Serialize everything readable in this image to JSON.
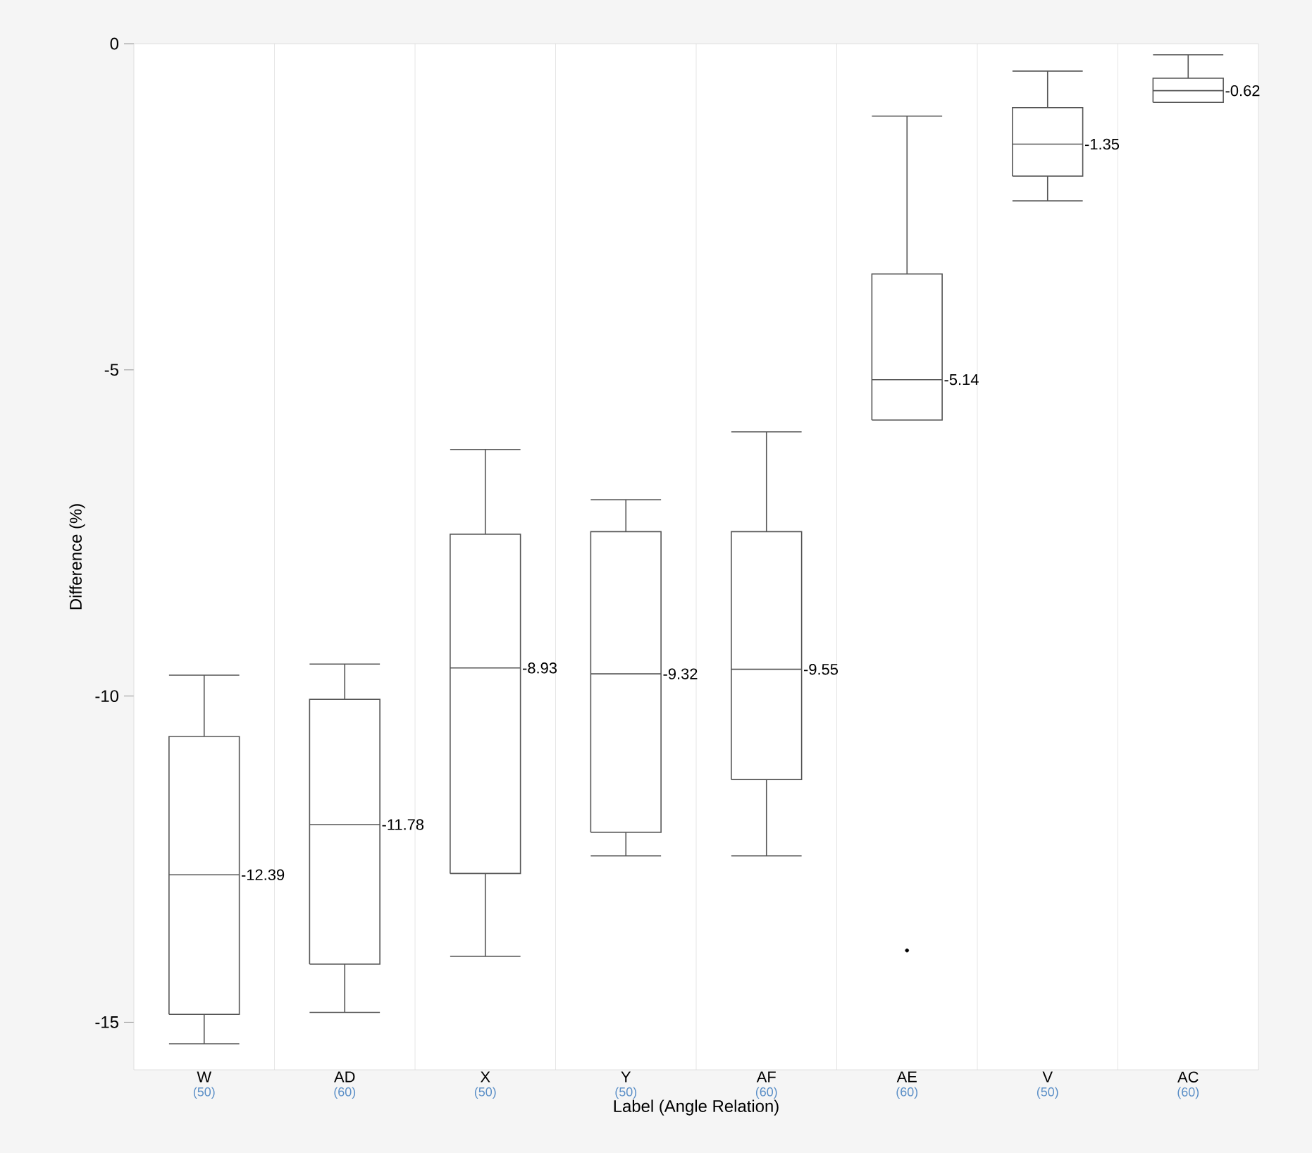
{
  "chart_data": {
    "type": "box",
    "xlabel": "Label (Angle Relation)",
    "ylabel": "Difference (%)",
    "categories": [
      "W",
      "AD",
      "X",
      "Y",
      "AF",
      "AE",
      "V",
      "AC"
    ],
    "color": "#555555",
    "boxes": [
      {
        "low": -15.33,
        "q1": -14.88,
        "median": -12.74,
        "q3": -10.62,
        "high": -9.68
      },
      {
        "low": -14.85,
        "q1": -14.11,
        "median": -11.97,
        "q3": -10.05,
        "high": -9.51
      },
      {
        "low": -13.99,
        "q1": -12.72,
        "median": -9.57,
        "q3": -7.52,
        "high": -6.22
      },
      {
        "low": -12.45,
        "q1": -12.09,
        "median": -9.66,
        "q3": -7.48,
        "high": -6.99
      },
      {
        "low": -12.45,
        "q1": -11.28,
        "median": -9.59,
        "q3": -7.48,
        "high": -5.95
      },
      {
        "low": -5.77,
        "q1": -5.77,
        "median": -5.15,
        "q3": -3.53,
        "high": -1.11,
        "outliers": [
          -13.9
        ]
      },
      {
        "low": -2.41,
        "q1": -2.03,
        "median": -1.54,
        "q3": -0.98,
        "high": -0.42
      },
      {
        "low": -0.9,
        "q1": -0.9,
        "median": -0.72,
        "q3": -0.53,
        "high": -0.17
      }
    ],
    "ylim": [
      -15.73,
      0
    ],
    "yticks": [
      0,
      -5,
      -10,
      -15
    ],
    "grid": "x",
    "annotations": [
      "-12.39",
      "-11.78",
      "-8.93",
      "-9.32",
      "-9.55",
      "-5.14",
      "-1.35",
      "-0.62",
      "(50)",
      "(60)",
      "(50)",
      "(50)",
      "(60)",
      "(60)",
      "(50)",
      "(60)"
    ]
  }
}
